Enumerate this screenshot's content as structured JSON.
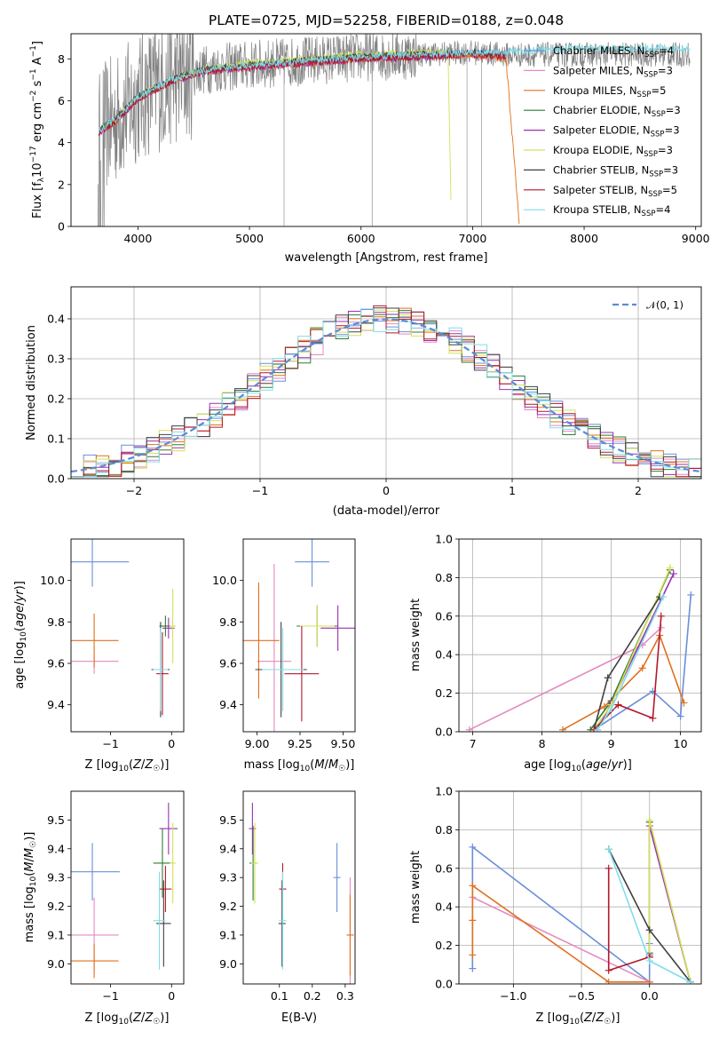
{
  "chart_data": [
    {
      "id": "spectrum",
      "type": "line",
      "title": "PLATE=0725, MJD=52258, FIBERID=0188, z=0.048",
      "xlabel": "wavelength [Angstrom, rest frame]",
      "ylabel": "Flux [f_λ10⁻¹⁷ erg cm⁻² s⁻¹ A⁻¹]",
      "xlim": [
        3400,
        9050
      ],
      "ylim": [
        0,
        9.2
      ],
      "xticks": [
        "4000",
        "5000",
        "6000",
        "7000",
        "8000",
        "9000"
      ],
      "yticks": [
        "0",
        "2",
        "4",
        "6",
        "8"
      ],
      "grid": false,
      "legend": "top-right",
      "observed_color": "#808080",
      "note": "",
      "series": [
        {
          "name": "Chabrier MILES, N_SSP=4",
          "color": "#6a8fd8",
          "x": [
            3650,
            3800,
            4000,
            4300,
            4600,
            5000,
            5500,
            6000,
            6500,
            7000,
            7300
          ],
          "y": [
            4.6,
            5.1,
            6.2,
            7.0,
            7.5,
            7.7,
            7.9,
            8.1,
            8.2,
            8.3,
            8.2
          ]
        },
        {
          "name": "Salpeter MILES, N_SSP=3",
          "color": "#e58ac0",
          "x": [
            3650,
            3800,
            4000,
            4300,
            4600,
            5000,
            5500,
            6000,
            6500,
            7000,
            7300
          ],
          "y": [
            4.5,
            5.0,
            6.1,
            6.9,
            7.4,
            7.6,
            7.8,
            8.0,
            8.1,
            8.2,
            8.1
          ]
        },
        {
          "name": "Kroupa MILES, N_SSP=5",
          "color": "#e07020",
          "x": [
            3650,
            3800,
            4000,
            4300,
            4600,
            5000,
            5500,
            6000,
            6500,
            7000,
            7300,
            7420
          ],
          "y": [
            4.5,
            5.0,
            6.1,
            6.9,
            7.4,
            7.6,
            7.8,
            8.0,
            8.1,
            8.2,
            8.0,
            0
          ]
        },
        {
          "name": "Chabrier ELODIE, N_SSP=3",
          "color": "#2e7d32",
          "x": [
            3650,
            3800,
            4000,
            4300,
            4600,
            5000,
            5500,
            6000,
            6500,
            6800
          ],
          "y": [
            4.6,
            5.1,
            6.2,
            7.0,
            7.5,
            7.7,
            7.9,
            8.1,
            8.2,
            8.2
          ]
        },
        {
          "name": "Salpeter ELODIE, N_SSP=3",
          "color": "#9b30b0",
          "x": [
            3650,
            3800,
            4000,
            4300,
            4600,
            5000,
            5500,
            6000,
            6500,
            6800
          ],
          "y": [
            4.5,
            5.0,
            6.1,
            6.9,
            7.4,
            7.6,
            7.8,
            8.0,
            8.1,
            8.1
          ]
        },
        {
          "name": "Kroupa ELODIE, N_SSP=3",
          "color": "#d4e157",
          "x": [
            3650,
            3800,
            4000,
            4300,
            4600,
            5000,
            5500,
            6000,
            6500,
            6780,
            6810
          ],
          "y": [
            4.6,
            5.1,
            6.2,
            7.0,
            7.5,
            7.8,
            8.0,
            8.2,
            8.3,
            8.3,
            0
          ]
        },
        {
          "name": "Chabrier STELIB, N_SSP=3",
          "color": "#404040",
          "x": [
            3650,
            3800,
            4000,
            4300,
            4600,
            5000,
            5500,
            6000,
            6500,
            7000,
            7300
          ],
          "y": [
            4.6,
            5.1,
            6.2,
            7.0,
            7.5,
            7.7,
            7.9,
            8.1,
            8.2,
            8.3,
            8.2
          ]
        },
        {
          "name": "Salpeter STELIB, N_SSP=5",
          "color": "#b2182b",
          "x": [
            3650,
            3800,
            4000,
            4300,
            4600,
            5000,
            5500,
            6000,
            6500,
            7000,
            7300
          ],
          "y": [
            4.5,
            5.0,
            6.1,
            6.9,
            7.4,
            7.6,
            7.8,
            8.0,
            8.1,
            8.2,
            8.1
          ]
        },
        {
          "name": "Kroupa STELIB, N_SSP=4",
          "color": "#80deea",
          "x": [
            3650,
            3800,
            4000,
            4300,
            4600,
            5000,
            5500,
            6000,
            6500,
            7000,
            7500,
            8000,
            8500,
            8950
          ],
          "y": [
            4.6,
            5.1,
            6.2,
            7.0,
            7.5,
            7.7,
            7.9,
            8.1,
            8.2,
            8.3,
            8.4,
            8.5,
            8.5,
            8.5
          ]
        }
      ]
    },
    {
      "id": "residuals",
      "type": "line",
      "xlabel": "(data-model)/error",
      "ylabel": "Normed distribution",
      "xlim": [
        -2.5,
        2.5
      ],
      "ylim": [
        0,
        0.48
      ],
      "xticks": [
        "−2",
        "−1",
        "0",
        "1",
        "2"
      ],
      "yticks": [
        "0.0",
        "0.1",
        "0.2",
        "0.3",
        "0.4"
      ],
      "grid": true,
      "legend": "top-right",
      "reference": {
        "name": "𝒩(0, 1)",
        "color": "#5b8bd6",
        "style": "dashed",
        "mean": 0,
        "sigma": 1
      },
      "bin_width": 0.1,
      "histogram_note": ""
    },
    {
      "id": "age-vs-Z",
      "type": "scatter",
      "xlabel": "Z [log₁₀(Z/Z☉)]",
      "ylabel": "age [log₁₀(age/yr)]",
      "xlim": [
        -1.65,
        0.2
      ],
      "ylim": [
        9.27,
        10.2
      ],
      "xticks": [
        "−1",
        "0"
      ],
      "yticks": [
        "9.4",
        "9.6",
        "9.8",
        "10.0"
      ],
      "grid": false,
      "points": [
        {
          "series": "Chabrier MILES",
          "x": -1.3,
          "y": 10.09,
          "xerr": 0.6,
          "yerr": 0.12
        },
        {
          "series": "Salpeter MILES",
          "x": -1.27,
          "y": 9.61,
          "xerr": 0.4,
          "yerr": 0.06
        },
        {
          "series": "Kroupa MILES",
          "x": -1.27,
          "y": 9.71,
          "xerr": 0.4,
          "yerr": 0.13
        },
        {
          "series": "Chabrier ELODIE",
          "x": -0.1,
          "y": 9.78,
          "xerr": 0.1,
          "yerr": 0.05
        },
        {
          "series": "Salpeter ELODIE",
          "x": -0.05,
          "y": 9.77,
          "xerr": 0.1,
          "yerr": 0.05
        },
        {
          "series": "Kroupa ELODIE",
          "x": 0.02,
          "y": 9.78,
          "xerr": 0.05,
          "yerr": 0.18
        },
        {
          "series": "Chabrier STELIB",
          "x": -0.18,
          "y": 9.57,
          "xerr": 0.15,
          "yerr": 0.23
        },
        {
          "series": "Salpeter STELIB",
          "x": -0.15,
          "y": 9.55,
          "xerr": 0.1,
          "yerr": 0.2
        },
        {
          "series": "Kroupa STELIB",
          "x": -0.18,
          "y": 9.57,
          "xerr": 0.12,
          "yerr": 0.2
        }
      ]
    },
    {
      "id": "age-vs-mass",
      "type": "scatter",
      "xlabel": "mass [log₁₀(M/M☉)]",
      "ylabel": "",
      "xlim": [
        8.92,
        9.57
      ],
      "ylim": [
        9.27,
        10.2
      ],
      "xticks": [
        "9.00",
        "9.25",
        "9.50"
      ],
      "yticks": [
        "9.4",
        "9.6",
        "9.8",
        "10.0"
      ],
      "grid": false,
      "points": [
        {
          "series": "Chabrier MILES",
          "x": 9.32,
          "y": 10.09,
          "xerr": 0.1,
          "yerr": 0.12
        },
        {
          "series": "Salpeter MILES",
          "x": 9.1,
          "y": 9.61,
          "xerr": 0.1,
          "yerr": 0.47
        },
        {
          "series": "Kroupa MILES",
          "x": 9.01,
          "y": 9.71,
          "xerr": 0.12,
          "yerr": 0.28
        },
        {
          "series": "Chabrier ELODIE",
          "x": 9.35,
          "y": 9.78,
          "xerr": 0.12,
          "yerr": 0.1
        },
        {
          "series": "Salpeter ELODIE",
          "x": 9.47,
          "y": 9.77,
          "xerr": 0.1,
          "yerr": 0.11
        },
        {
          "series": "Kroupa ELODIE",
          "x": 9.35,
          "y": 9.78,
          "xerr": 0.1,
          "yerr": 0.1
        },
        {
          "series": "Chabrier STELIB",
          "x": 9.14,
          "y": 9.57,
          "xerr": 0.15,
          "yerr": 0.23
        },
        {
          "series": "Salpeter STELIB",
          "x": 9.26,
          "y": 9.55,
          "xerr": 0.1,
          "yerr": 0.23
        },
        {
          "series": "Kroupa STELIB",
          "x": 9.15,
          "y": 9.57,
          "xerr": 0.12,
          "yerr": 0.2
        }
      ]
    },
    {
      "id": "weight-vs-age",
      "type": "line",
      "xlabel": "age [log₁₀(age/yr)]",
      "ylabel": "mass weight",
      "xlim": [
        6.8,
        10.3
      ],
      "ylim": [
        0,
        1.0
      ],
      "xticks": [
        "7",
        "8",
        "9",
        "10"
      ],
      "yticks": [
        "0.0",
        "0.2",
        "0.4",
        "0.6",
        "0.8",
        "1.0"
      ],
      "grid": true,
      "series": [
        {
          "name": "Chabrier MILES",
          "x": [
            8.75,
            9.6,
            10.0,
            10.15
          ],
          "y": [
            0.01,
            0.21,
            0.08,
            0.71
          ]
        },
        {
          "name": "Salpeter MILES",
          "x": [
            6.95,
            9.45,
            9.72
          ],
          "y": [
            0.01,
            0.45,
            0.54
          ]
        },
        {
          "name": "Kroupa MILES",
          "x": [
            8.3,
            8.9,
            9.45,
            9.7,
            10.05
          ],
          "y": [
            0.01,
            0.13,
            0.33,
            0.5,
            0.15
          ]
        },
        {
          "name": "Chabrier ELODIE",
          "x": [
            8.7,
            9.0,
            9.85
          ],
          "y": [
            0.01,
            0.16,
            0.84
          ]
        },
        {
          "name": "Salpeter ELODIE",
          "x": [
            8.8,
            9.0,
            9.9
          ],
          "y": [
            0.01,
            0.15,
            0.82
          ]
        },
        {
          "name": "Kroupa ELODIE",
          "x": [
            8.75,
            9.0,
            9.85
          ],
          "y": [
            0.01,
            0.14,
            0.85
          ]
        },
        {
          "name": "Chabrier STELIB",
          "x": [
            8.75,
            8.95,
            9.7
          ],
          "y": [
            0.01,
            0.28,
            0.7
          ]
        },
        {
          "name": "Salpeter STELIB",
          "x": [
            8.75,
            9.1,
            9.6,
            9.72
          ],
          "y": [
            0.01,
            0.14,
            0.07,
            0.6
          ]
        },
        {
          "name": "Kroupa STELIB",
          "x": [
            8.8,
            9.0,
            9.75
          ],
          "y": [
            0.01,
            0.12,
            0.7
          ]
        }
      ]
    },
    {
      "id": "mass-vs-Z",
      "type": "scatter",
      "xlabel": "Z [log₁₀(Z/Z☉)]",
      "ylabel": "mass [log₁₀(M/M☉)]",
      "xlim": [
        -1.65,
        0.2
      ],
      "ylim": [
        8.93,
        9.6
      ],
      "xticks": [
        "−1",
        "0"
      ],
      "yticks": [
        "9.0",
        "9.1",
        "9.2",
        "9.3",
        "9.4",
        "9.5"
      ],
      "grid": false,
      "points": [
        {
          "series": "Chabrier MILES",
          "x": -1.3,
          "y": 9.32,
          "xerr": 0.45,
          "yerr": 0.1
        },
        {
          "series": "Salpeter MILES",
          "x": -1.27,
          "y": 9.1,
          "xerr": 0.4,
          "yerr": 0.13
        },
        {
          "series": "Kroupa MILES",
          "x": -1.27,
          "y": 9.01,
          "xerr": 0.4,
          "yerr": 0.06
        },
        {
          "series": "Chabrier ELODIE",
          "x": -0.15,
          "y": 9.35,
          "xerr": 0.15,
          "yerr": 0.12
        },
        {
          "series": "Salpeter ELODIE",
          "x": -0.05,
          "y": 9.47,
          "xerr": 0.15,
          "yerr": 0.09
        },
        {
          "series": "Kroupa ELODIE",
          "x": 0.02,
          "y": 9.35,
          "xerr": 0.05,
          "yerr": 0.14
        },
        {
          "series": "Chabrier STELIB",
          "x": -0.13,
          "y": 9.14,
          "xerr": 0.12,
          "yerr": 0.15
        },
        {
          "series": "Salpeter STELIB",
          "x": -0.1,
          "y": 9.26,
          "xerr": 0.1,
          "yerr": 0.08
        },
        {
          "series": "Kroupa STELIB",
          "x": -0.2,
          "y": 9.15,
          "xerr": 0.1,
          "yerr": 0.17
        }
      ]
    },
    {
      "id": "mass-vs-ebv",
      "type": "scatter",
      "xlabel": "E(B-V)",
      "ylabel": "",
      "xlim": [
        -0.01,
        0.33
      ],
      "ylim": [
        8.93,
        9.6
      ],
      "xticks": [
        "0.1",
        "0.2",
        "0.3"
      ],
      "yticks": [
        "9.0",
        "9.1",
        "9.2",
        "9.3",
        "9.4",
        "9.5"
      ],
      "grid": false,
      "points": [
        {
          "series": "Chabrier MILES",
          "x": 0.275,
          "y": 9.3,
          "xerr": 0.0,
          "yerr": 0.12
        },
        {
          "series": "Salpeter MILES",
          "x": 0.315,
          "y": 9.1,
          "xerr": 0.0,
          "yerr": 0.2
        },
        {
          "series": "Kroupa MILES",
          "x": 0.315,
          "y": 9.1,
          "xerr": 0.0,
          "yerr": 0.14
        },
        {
          "series": "Chabrier ELODIE",
          "x": 0.02,
          "y": 9.35,
          "xerr": 0.0,
          "yerr": 0.13
        },
        {
          "series": "Salpeter ELODIE",
          "x": 0.018,
          "y": 9.47,
          "xerr": 0.0,
          "yerr": 0.09
        },
        {
          "series": "Kroupa ELODIE",
          "x": 0.025,
          "y": 9.35,
          "xerr": 0.0,
          "yerr": 0.14
        },
        {
          "series": "Chabrier STELIB",
          "x": 0.108,
          "y": 9.14,
          "xerr": 0.0,
          "yerr": 0.15
        },
        {
          "series": "Salpeter STELIB",
          "x": 0.11,
          "y": 9.26,
          "xerr": 0.0,
          "yerr": 0.09
        },
        {
          "series": "Kroupa STELIB",
          "x": 0.11,
          "y": 9.15,
          "xerr": 0.0,
          "yerr": 0.17
        }
      ]
    },
    {
      "id": "weight-vs-Z",
      "type": "line",
      "xlabel": "Z [log₁₀(Z/Z☉)]",
      "ylabel": "mass weight",
      "xlim": [
        -1.4,
        0.38
      ],
      "ylim": [
        0,
        1.0
      ],
      "xticks": [
        "−1.0",
        "−0.5",
        "0.0"
      ],
      "yticks": [
        "0.0",
        "0.2",
        "0.4",
        "0.6",
        "0.8",
        "1.0"
      ],
      "grid": true,
      "series": [
        {
          "name": "Chabrier MILES",
          "x": [
            -1.3,
            -1.3,
            0.0,
            0.0
          ],
          "y": [
            0.08,
            0.71,
            0.01,
            0.21
          ]
        },
        {
          "name": "Salpeter MILES",
          "x": [
            -1.3,
            0.0
          ],
          "y": [
            0.45,
            0.01
          ]
        },
        {
          "name": "Kroupa MILES",
          "x": [
            -1.3,
            -1.3,
            -1.3,
            -0.3,
            0.0
          ],
          "y": [
            0.15,
            0.33,
            0.51,
            0.01,
            0.01
          ]
        },
        {
          "name": "Chabrier ELODIE",
          "x": [
            0.0,
            0.0,
            0.3
          ],
          "y": [
            0.16,
            0.84,
            0.01
          ]
        },
        {
          "name": "Salpeter ELODIE",
          "x": [
            0.0,
            0.0,
            0.3
          ],
          "y": [
            0.15,
            0.82,
            0.01
          ]
        },
        {
          "name": "Kroupa ELODIE",
          "x": [
            0.0,
            0.0,
            0.3
          ],
          "y": [
            0.14,
            0.85,
            0.01
          ]
        },
        {
          "name": "Chabrier STELIB",
          "x": [
            -0.3,
            0.0,
            0.3
          ],
          "y": [
            0.7,
            0.28,
            0.01
          ]
        },
        {
          "name": "Salpeter STELIB",
          "x": [
            -0.3,
            -0.3,
            0.0,
            0.0
          ],
          "y": [
            0.6,
            0.07,
            0.14,
            0.14
          ]
        },
        {
          "name": "Kroupa STELIB",
          "x": [
            -0.3,
            0.0,
            0.3
          ],
          "y": [
            0.7,
            0.12,
            0.01
          ]
        }
      ]
    }
  ]
}
